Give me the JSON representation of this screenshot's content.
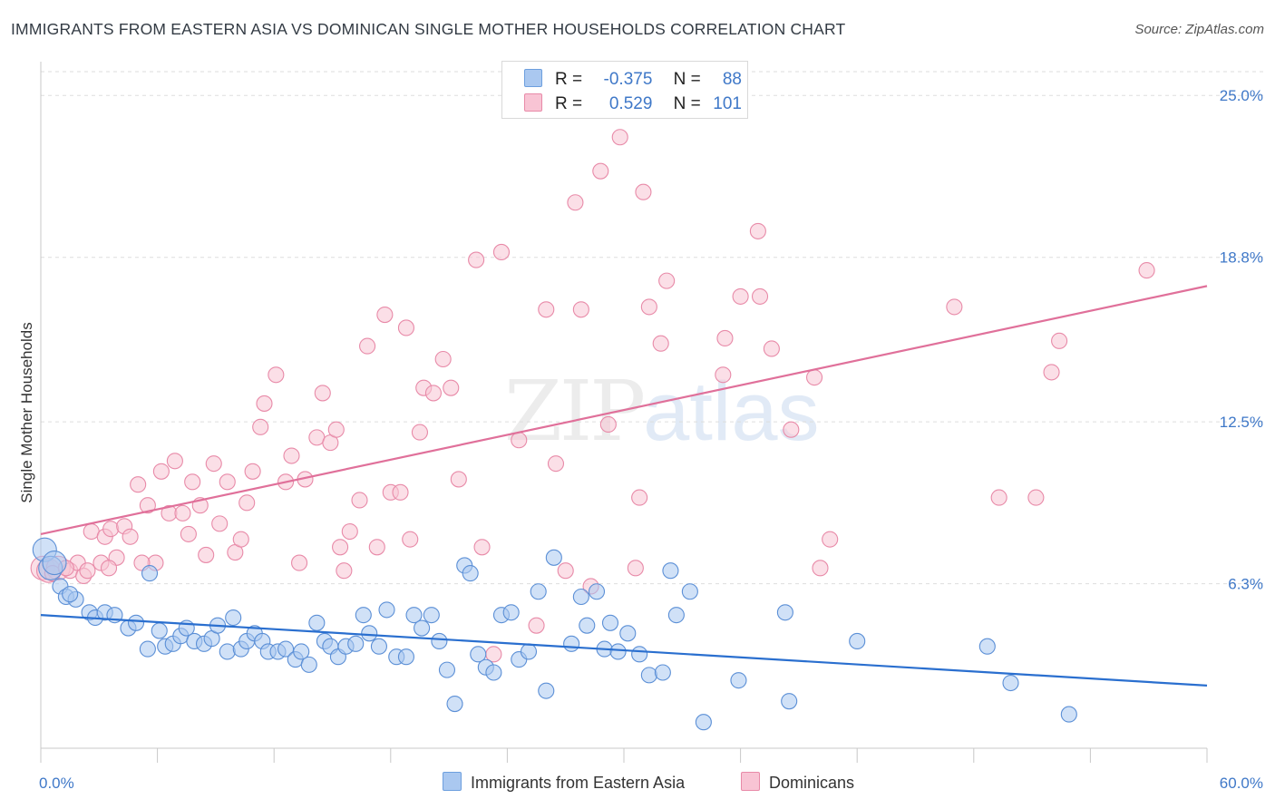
{
  "header": {
    "title": "IMMIGRANTS FROM EASTERN ASIA VS DOMINICAN SINGLE MOTHER HOUSEHOLDS CORRELATION CHART",
    "source": "Source: ZipAtlas.com"
  },
  "watermark": {
    "zip": "ZIP",
    "atlas": "atlas"
  },
  "legend": {
    "rows": [
      {
        "r_label": "R =",
        "r_value": "-0.375",
        "n_label": "N =",
        "n_value": "88",
        "color": "#aac8f0",
        "stroke": "#6d9fde"
      },
      {
        "r_label": "R =",
        "r_value": "0.529",
        "n_label": "N =",
        "n_value": "101",
        "color": "#f8c4d4",
        "stroke": "#e88aa8"
      }
    ]
  },
  "colors": {
    "blue_fill": "#aac8f0",
    "blue_stroke": "#5b8fd6",
    "blue_line": "#2a6fcf",
    "pink_fill": "#f8c4d4",
    "pink_stroke": "#e88aa8",
    "pink_line": "#e0709a",
    "tick_text": "#3f78c8",
    "grid": "#dddddd"
  },
  "chart_data": {
    "type": "scatter",
    "title": "IMMIGRANTS FROM EASTERN ASIA VS DOMINICAN SINGLE MOTHER HOUSEHOLDS CORRELATION CHART",
    "xlabel": "",
    "ylabel": "Single Mother Households",
    "xlim": [
      0,
      60
    ],
    "ylim": [
      0,
      26.5
    ],
    "x_tick_labels": [
      "0.0%",
      "60.0%"
    ],
    "y_ticks": [
      6.3,
      12.5,
      18.8,
      25.0
    ],
    "y_tick_labels": [
      "6.3%",
      "12.5%",
      "18.8%",
      "25.0%"
    ],
    "grid": "horizontal dashed",
    "legend_position": "bottom",
    "series": [
      {
        "name": "Immigrants from Eastern Asia",
        "color": "#aac8f0",
        "trend": {
          "x": [
            0,
            60
          ],
          "y": [
            5.1,
            2.4
          ]
        },
        "points": [
          [
            0.2,
            7.6
          ],
          [
            0.5,
            6.9
          ],
          [
            0.7,
            7.1
          ],
          [
            1.0,
            6.2
          ],
          [
            1.3,
            5.8
          ],
          [
            1.8,
            5.7
          ],
          [
            2.5,
            5.2
          ],
          [
            2.8,
            5.0
          ],
          [
            3.3,
            5.2
          ],
          [
            3.8,
            5.1
          ],
          [
            4.5,
            4.6
          ],
          [
            4.9,
            4.8
          ],
          [
            5.5,
            3.8
          ],
          [
            5.6,
            6.7
          ],
          [
            6.1,
            4.5
          ],
          [
            6.4,
            3.9
          ],
          [
            6.8,
            4.0
          ],
          [
            7.2,
            4.3
          ],
          [
            7.5,
            4.6
          ],
          [
            7.9,
            4.1
          ],
          [
            8.4,
            4.0
          ],
          [
            8.8,
            4.2
          ],
          [
            9.1,
            4.7
          ],
          [
            9.6,
            3.7
          ],
          [
            9.9,
            5.0
          ],
          [
            10.3,
            3.8
          ],
          [
            10.6,
            4.1
          ],
          [
            11.0,
            4.4
          ],
          [
            11.4,
            4.1
          ],
          [
            11.7,
            3.7
          ],
          [
            12.2,
            3.7
          ],
          [
            12.6,
            3.8
          ],
          [
            13.1,
            3.4
          ],
          [
            13.4,
            3.7
          ],
          [
            13.8,
            3.2
          ],
          [
            14.2,
            4.8
          ],
          [
            14.6,
            4.1
          ],
          [
            14.9,
            3.9
          ],
          [
            15.3,
            3.5
          ],
          [
            15.7,
            3.9
          ],
          [
            16.2,
            4.0
          ],
          [
            16.6,
            5.1
          ],
          [
            16.9,
            4.4
          ],
          [
            17.4,
            3.9
          ],
          [
            17.8,
            5.3
          ],
          [
            18.3,
            3.5
          ],
          [
            18.8,
            3.5
          ],
          [
            19.2,
            5.1
          ],
          [
            19.6,
            4.6
          ],
          [
            20.1,
            5.1
          ],
          [
            20.5,
            4.1
          ],
          [
            20.9,
            3.0
          ],
          [
            21.3,
            1.7
          ],
          [
            21.8,
            7.0
          ],
          [
            22.1,
            6.7
          ],
          [
            22.5,
            3.6
          ],
          [
            22.9,
            3.1
          ],
          [
            23.3,
            2.9
          ],
          [
            23.7,
            5.1
          ],
          [
            24.2,
            5.2
          ],
          [
            24.6,
            3.4
          ],
          [
            25.1,
            3.7
          ],
          [
            25.6,
            6.0
          ],
          [
            26.0,
            2.2
          ],
          [
            26.4,
            7.3
          ],
          [
            27.3,
            4.0
          ],
          [
            27.8,
            5.8
          ],
          [
            28.1,
            4.7
          ],
          [
            28.6,
            6.0
          ],
          [
            29.0,
            3.8
          ],
          [
            29.3,
            4.8
          ],
          [
            29.7,
            3.7
          ],
          [
            30.2,
            4.4
          ],
          [
            30.8,
            3.6
          ],
          [
            31.3,
            2.8
          ],
          [
            32.0,
            2.9
          ],
          [
            32.4,
            6.8
          ],
          [
            32.7,
            5.1
          ],
          [
            33.4,
            6.0
          ],
          [
            34.1,
            1.0
          ],
          [
            35.9,
            2.6
          ],
          [
            38.3,
            5.2
          ],
          [
            38.5,
            1.8
          ],
          [
            42.0,
            4.1
          ],
          [
            48.7,
            3.9
          ],
          [
            49.9,
            2.5
          ],
          [
            52.9,
            1.3
          ],
          [
            1.5,
            5.9
          ]
        ]
      },
      {
        "name": "Dominicans",
        "color": "#f8c4d4",
        "trend": {
          "x": [
            0,
            60
          ],
          "y": [
            8.2,
            17.7
          ]
        },
        "points": [
          [
            0.1,
            6.9
          ],
          [
            0.4,
            6.8
          ],
          [
            0.9,
            6.9
          ],
          [
            1.5,
            6.8
          ],
          [
            1.9,
            7.1
          ],
          [
            2.2,
            6.6
          ],
          [
            2.6,
            8.3
          ],
          [
            3.1,
            7.1
          ],
          [
            3.3,
            8.1
          ],
          [
            3.6,
            8.4
          ],
          [
            3.9,
            7.3
          ],
          [
            4.3,
            8.5
          ],
          [
            4.6,
            8.1
          ],
          [
            5.0,
            10.1
          ],
          [
            5.5,
            9.3
          ],
          [
            5.9,
            7.1
          ],
          [
            6.2,
            10.6
          ],
          [
            6.6,
            9.0
          ],
          [
            6.9,
            11.0
          ],
          [
            7.3,
            9.0
          ],
          [
            7.6,
            8.2
          ],
          [
            7.8,
            10.2
          ],
          [
            8.2,
            9.3
          ],
          [
            8.5,
            7.4
          ],
          [
            8.9,
            10.9
          ],
          [
            9.2,
            8.6
          ],
          [
            9.6,
            10.2
          ],
          [
            10.0,
            7.5
          ],
          [
            10.3,
            8.0
          ],
          [
            10.6,
            9.4
          ],
          [
            10.9,
            10.6
          ],
          [
            11.3,
            12.3
          ],
          [
            11.5,
            13.2
          ],
          [
            12.1,
            14.3
          ],
          [
            12.6,
            10.2
          ],
          [
            12.9,
            11.2
          ],
          [
            13.3,
            7.1
          ],
          [
            13.6,
            10.3
          ],
          [
            14.2,
            11.9
          ],
          [
            14.5,
            13.6
          ],
          [
            14.9,
            11.7
          ],
          [
            15.2,
            12.2
          ],
          [
            15.4,
            7.7
          ],
          [
            15.6,
            6.8
          ],
          [
            15.9,
            8.3
          ],
          [
            16.4,
            9.5
          ],
          [
            16.8,
            15.4
          ],
          [
            17.3,
            7.7
          ],
          [
            17.7,
            16.6
          ],
          [
            18.0,
            9.8
          ],
          [
            18.5,
            9.8
          ],
          [
            18.8,
            16.1
          ],
          [
            19.0,
            8.0
          ],
          [
            19.5,
            12.1
          ],
          [
            19.7,
            13.8
          ],
          [
            20.2,
            13.6
          ],
          [
            20.7,
            14.9
          ],
          [
            21.1,
            13.8
          ],
          [
            21.5,
            10.3
          ],
          [
            22.4,
            18.7
          ],
          [
            22.7,
            7.7
          ],
          [
            23.3,
            3.6
          ],
          [
            23.7,
            19.0
          ],
          [
            24.6,
            11.8
          ],
          [
            25.5,
            4.7
          ],
          [
            26.0,
            16.8
          ],
          [
            26.5,
            10.9
          ],
          [
            27.0,
            6.8
          ],
          [
            27.5,
            20.9
          ],
          [
            27.8,
            16.8
          ],
          [
            28.3,
            6.2
          ],
          [
            28.8,
            22.1
          ],
          [
            29.2,
            12.4
          ],
          [
            29.8,
            23.4
          ],
          [
            30.6,
            6.9
          ],
          [
            30.8,
            9.6
          ],
          [
            31.0,
            21.3
          ],
          [
            31.3,
            16.9
          ],
          [
            31.9,
            15.5
          ],
          [
            32.2,
            17.9
          ],
          [
            35.1,
            14.3
          ],
          [
            35.2,
            15.7
          ],
          [
            36.0,
            17.3
          ],
          [
            36.9,
            19.8
          ],
          [
            37.0,
            17.3
          ],
          [
            37.6,
            15.3
          ],
          [
            38.6,
            12.2
          ],
          [
            39.8,
            14.2
          ],
          [
            40.6,
            8.0
          ],
          [
            40.1,
            6.9
          ],
          [
            47.0,
            16.9
          ],
          [
            49.3,
            9.6
          ],
          [
            51.2,
            9.6
          ],
          [
            52.0,
            14.4
          ],
          [
            52.4,
            15.6
          ],
          [
            56.9,
            18.3
          ],
          [
            0.6,
            6.7
          ],
          [
            1.3,
            6.9
          ],
          [
            2.4,
            6.8
          ],
          [
            3.5,
            6.9
          ],
          [
            5.2,
            7.1
          ]
        ]
      }
    ]
  },
  "bottom_legend": {
    "series1": "Immigrants from Eastern Asia",
    "series2": "Dominicans"
  }
}
